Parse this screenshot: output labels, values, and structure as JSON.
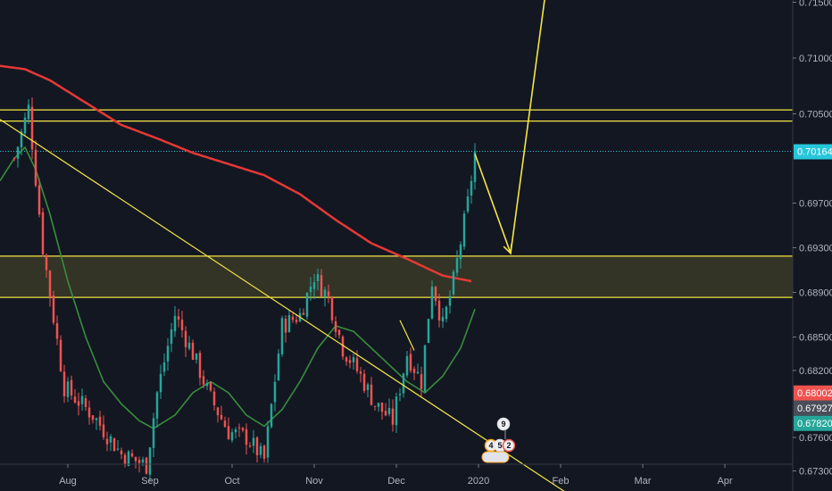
{
  "chart_data": {
    "type": "candlestick",
    "ylim": [
      0.6712,
      0.7152
    ],
    "xlim": [
      -4,
      218
    ],
    "grid": false,
    "colors": {
      "background": "#131722",
      "up": "#26a69a",
      "down": "#ef5350",
      "ma_long": "#e53935",
      "ma_short": "#388e3c",
      "drawing": "#f5e642",
      "axis_text": "#b2b5be",
      "current_line": "#26c6da"
    },
    "x_tick_labels": [
      {
        "label": "Aug",
        "x": 15
      },
      {
        "label": "Sep",
        "x": 38
      },
      {
        "label": "Oct",
        "x": 61
      },
      {
        "label": "Nov",
        "x": 84
      },
      {
        "label": "Dec",
        "x": 107
      },
      {
        "label": "2020",
        "x": 130
      },
      {
        "label": "Feb",
        "x": 153
      },
      {
        "label": "Mar",
        "x": 176
      },
      {
        "label": "Apr",
        "x": 199
      }
    ],
    "y_tick_labels": [
      "0.71500",
      "0.71000",
      "0.70500",
      "0.70164",
      "0.69700",
      "0.69300",
      "0.68900",
      "0.68500",
      "0.68200",
      "0.68002",
      "0.67927",
      "0.67820",
      "0.67600",
      "0.67300"
    ],
    "y_ticks": [
      0.715,
      0.71,
      0.705,
      0.697,
      0.693,
      0.689,
      0.685,
      0.682,
      0.676,
      0.673
    ],
    "price_tags": [
      {
        "label": "0.70164",
        "value": 0.70164,
        "color": "#26c6da"
      },
      {
        "label": "0.68002",
        "value": 0.68002,
        "color": "#ef5350"
      },
      {
        "label": "0.67927",
        "value": 0.67927,
        "color": "#4a4e5a"
      },
      {
        "label": "0.67820",
        "value": 0.6782,
        "color": "#26a69a"
      }
    ],
    "current_price": 0.70164,
    "resistance_band": [
      0.70435,
      0.70535
    ],
    "support_zone": [
      0.68855,
      0.69225
    ],
    "trendlines": [
      {
        "from": [
          -4,
          0.7045
        ],
        "to": [
          156,
          0.67075
        ]
      },
      {
        "from": [
          108,
          0.6865
        ],
        "to": [
          112,
          0.6838
        ]
      }
    ],
    "projection_path": [
      [
        129,
        0.7014
      ],
      [
        139,
        0.6925
      ],
      [
        149,
        0.7164
      ]
    ],
    "events": [
      "9",
      "4",
      "5",
      "2"
    ],
    "key_points": [
      {
        "x": 0,
        "price": 0.701
      },
      {
        "x": 4,
        "price": 0.7055
      },
      {
        "x": 8,
        "price": 0.693
      },
      {
        "x": 14,
        "price": 0.6805
      },
      {
        "x": 22,
        "price": 0.678
      },
      {
        "x": 30,
        "price": 0.6745
      },
      {
        "x": 37,
        "price": 0.6735
      },
      {
        "x": 40,
        "price": 0.68
      },
      {
        "x": 45,
        "price": 0.687
      },
      {
        "x": 50,
        "price": 0.6835
      },
      {
        "x": 55,
        "price": 0.6795
      },
      {
        "x": 60,
        "price": 0.6765
      },
      {
        "x": 65,
        "price": 0.676
      },
      {
        "x": 70,
        "price": 0.674
      },
      {
        "x": 75,
        "price": 0.686
      },
      {
        "x": 80,
        "price": 0.687
      },
      {
        "x": 84,
        "price": 0.6905
      },
      {
        "x": 88,
        "price": 0.6885
      },
      {
        "x": 92,
        "price": 0.684
      },
      {
        "x": 97,
        "price": 0.6815
      },
      {
        "x": 101,
        "price": 0.679
      },
      {
        "x": 106,
        "price": 0.6775
      },
      {
        "x": 110,
        "price": 0.6835
      },
      {
        "x": 114,
        "price": 0.681
      },
      {
        "x": 117,
        "price": 0.69
      },
      {
        "x": 120,
        "price": 0.686
      },
      {
        "x": 123,
        "price": 0.69
      },
      {
        "x": 127,
        "price": 0.697
      },
      {
        "x": 129,
        "price": 0.7015
      }
    ],
    "ma_long": [
      {
        "x": -4,
        "price": 0.7093
      },
      {
        "x": 3,
        "price": 0.709
      },
      {
        "x": 10,
        "price": 0.708
      },
      {
        "x": 20,
        "price": 0.706
      },
      {
        "x": 30,
        "price": 0.704
      },
      {
        "x": 40,
        "price": 0.7028
      },
      {
        "x": 50,
        "price": 0.7015
      },
      {
        "x": 60,
        "price": 0.7005
      },
      {
        "x": 70,
        "price": 0.6995
      },
      {
        "x": 80,
        "price": 0.6978
      },
      {
        "x": 90,
        "price": 0.6955
      },
      {
        "x": 100,
        "price": 0.6934
      },
      {
        "x": 110,
        "price": 0.692
      },
      {
        "x": 120,
        "price": 0.6905
      },
      {
        "x": 128,
        "price": 0.69
      }
    ],
    "ma_short": [
      {
        "x": -4,
        "price": 0.699
      },
      {
        "x": 0,
        "price": 0.701
      },
      {
        "x": 3,
        "price": 0.702
      },
      {
        "x": 6,
        "price": 0.7
      },
      {
        "x": 10,
        "price": 0.696
      },
      {
        "x": 15,
        "price": 0.69
      },
      {
        "x": 20,
        "price": 0.685
      },
      {
        "x": 25,
        "price": 0.681
      },
      {
        "x": 30,
        "price": 0.679
      },
      {
        "x": 35,
        "price": 0.6775
      },
      {
        "x": 39,
        "price": 0.6768
      },
      {
        "x": 45,
        "price": 0.678
      },
      {
        "x": 50,
        "price": 0.68
      },
      {
        "x": 55,
        "price": 0.681
      },
      {
        "x": 60,
        "price": 0.68
      },
      {
        "x": 65,
        "price": 0.678
      },
      {
        "x": 70,
        "price": 0.677
      },
      {
        "x": 75,
        "price": 0.6785
      },
      {
        "x": 80,
        "price": 0.681
      },
      {
        "x": 85,
        "price": 0.684
      },
      {
        "x": 90,
        "price": 0.686
      },
      {
        "x": 95,
        "price": 0.6855
      },
      {
        "x": 100,
        "price": 0.684
      },
      {
        "x": 105,
        "price": 0.6825
      },
      {
        "x": 110,
        "price": 0.681
      },
      {
        "x": 115,
        "price": 0.68
      },
      {
        "x": 120,
        "price": 0.6815
      },
      {
        "x": 125,
        "price": 0.684
      },
      {
        "x": 129,
        "price": 0.6875
      }
    ]
  }
}
